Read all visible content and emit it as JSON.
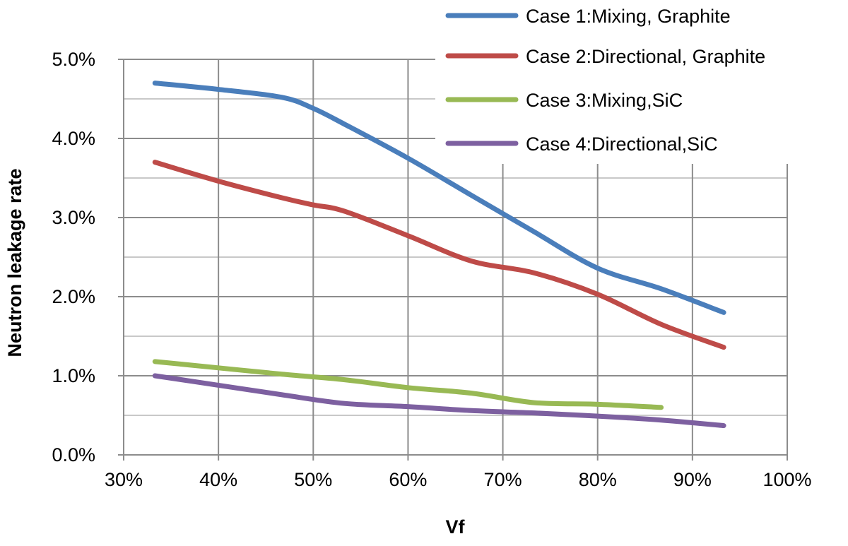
{
  "chart_data": {
    "type": "line",
    "title": "",
    "xlabel": "Vf",
    "ylabel": "Neutron leakage rate",
    "xlim": [
      0.3,
      1.0
    ],
    "ylim": [
      0.0,
      0.05
    ],
    "x_ticks": [
      0.3,
      0.4,
      0.5,
      0.6,
      0.7,
      0.8,
      0.9,
      1.0
    ],
    "x_tick_labels": [
      "30%",
      "40%",
      "50%",
      "60%",
      "70%",
      "80%",
      "90%",
      "100%"
    ],
    "y_ticks": [
      0.0,
      0.01,
      0.02,
      0.03,
      0.04,
      0.05
    ],
    "y_tick_labels": [
      "0.0%",
      "1.0%",
      "2.0%",
      "3.0%",
      "4.0%",
      "5.0%"
    ],
    "grid": true,
    "legend_position": "top-right",
    "series": [
      {
        "name": "Case 1:Mixing, Graphite",
        "color": "#4a7ebb",
        "x": [
          0.333,
          0.4,
          0.467,
          0.5,
          0.533,
          0.6,
          0.667,
          0.733,
          0.8,
          0.867,
          0.933
        ],
        "y": [
          0.047,
          0.0462,
          0.0452,
          0.0438,
          0.0418,
          0.0375,
          0.0328,
          0.0282,
          0.0236,
          0.021,
          0.018
        ]
      },
      {
        "name": "Case 2:Directional, Graphite",
        "color": "#be4b48",
        "x": [
          0.333,
          0.4,
          0.467,
          0.5,
          0.533,
          0.6,
          0.667,
          0.733,
          0.8,
          0.867,
          0.933
        ],
        "y": [
          0.037,
          0.0346,
          0.0325,
          0.0316,
          0.0308,
          0.0277,
          0.0245,
          0.023,
          0.0203,
          0.0165,
          0.0136
        ]
      },
      {
        "name": "Case 3:Mixing,SiC",
        "color": "#98b954",
        "x": [
          0.333,
          0.4,
          0.467,
          0.533,
          0.6,
          0.667,
          0.733,
          0.8,
          0.867
        ],
        "y": [
          0.0118,
          0.011,
          0.0102,
          0.0095,
          0.0085,
          0.0078,
          0.0066,
          0.0064,
          0.006
        ]
      },
      {
        "name": "Case 4:Directional,SiC",
        "color": "#7d60a0",
        "x": [
          0.333,
          0.4,
          0.467,
          0.533,
          0.6,
          0.667,
          0.733,
          0.8,
          0.867,
          0.933
        ],
        "y": [
          0.01,
          0.0088,
          0.0076,
          0.0065,
          0.0061,
          0.0056,
          0.0053,
          0.0049,
          0.0044,
          0.0037
        ]
      }
    ]
  }
}
